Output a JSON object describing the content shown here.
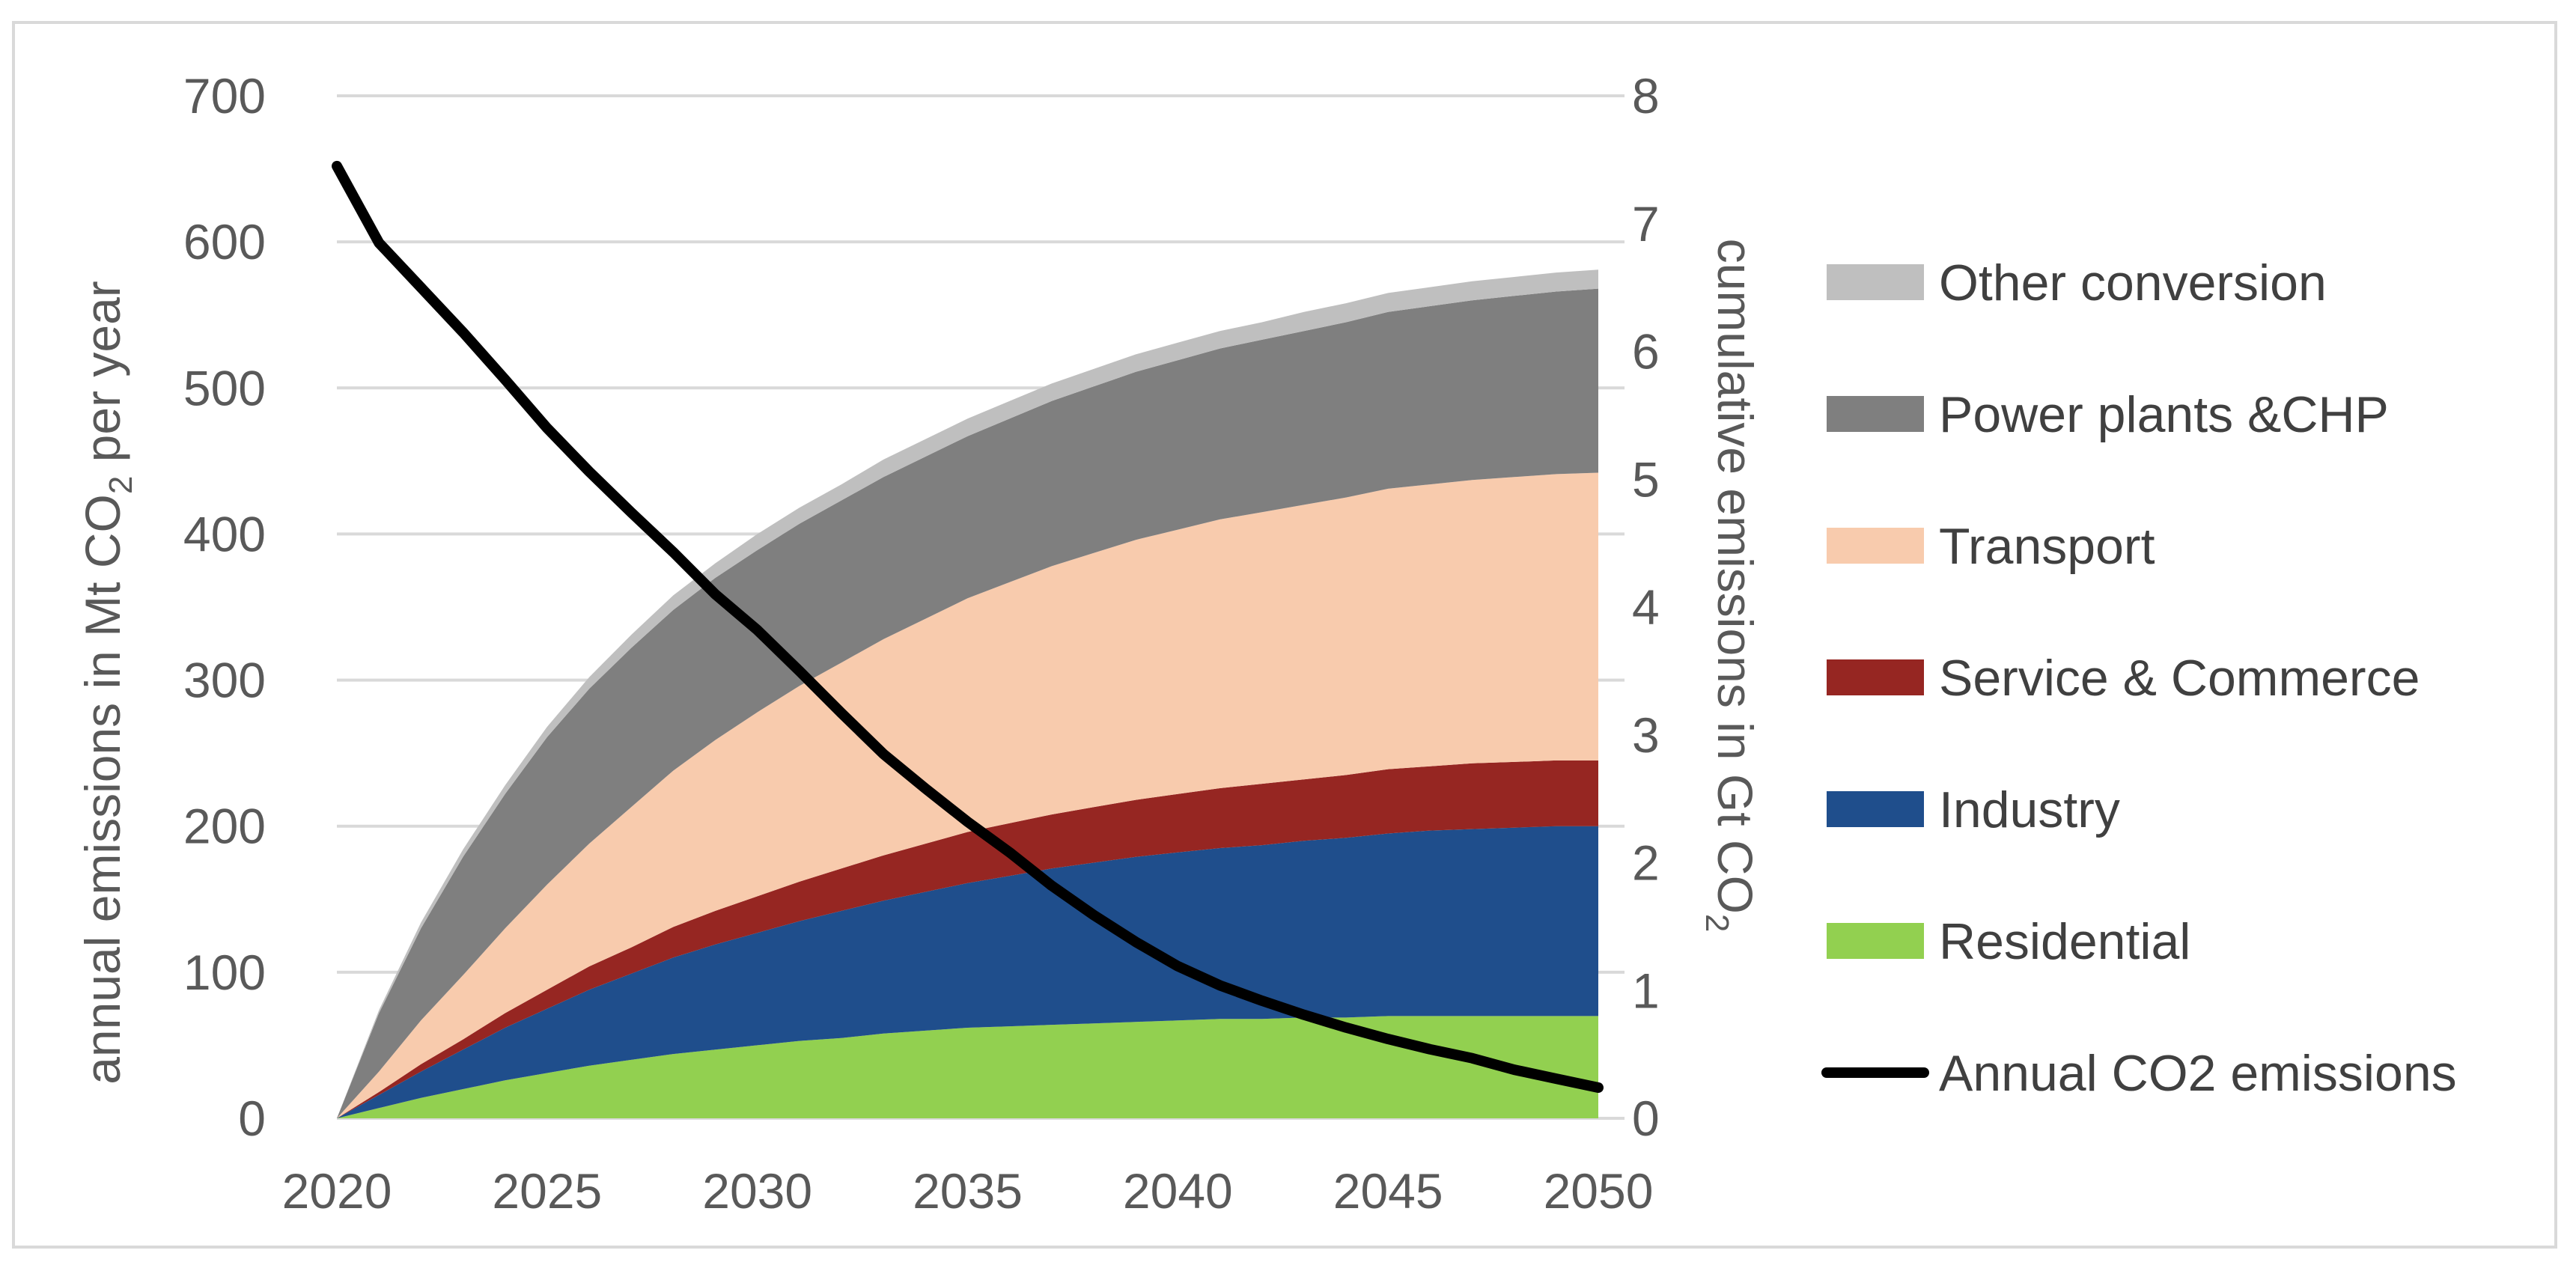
{
  "chart_data": {
    "type": "area",
    "stacked": true,
    "x": [
      2020,
      2021,
      2022,
      2023,
      2024,
      2025,
      2026,
      2027,
      2028,
      2029,
      2030,
      2031,
      2032,
      2033,
      2034,
      2035,
      2036,
      2037,
      2038,
      2039,
      2040,
      2041,
      2042,
      2043,
      2044,
      2045,
      2046,
      2047,
      2048,
      2049,
      2050
    ],
    "xticks": [
      "2020",
      "2025",
      "2030",
      "2035",
      "2040",
      "2045",
      "2050"
    ],
    "xlim": [
      2020,
      2050
    ],
    "y_left": {
      "label": "annual emissions in Mt CO",
      "subscript": "2",
      "suffix": " per year",
      "ylim": [
        0,
        700
      ],
      "ticks": [
        "0",
        "100",
        "200",
        "300",
        "400",
        "500",
        "600",
        "700"
      ]
    },
    "y_right": {
      "label": "cumulative emissions in Gt CO",
      "subscript": "2",
      "ylim": [
        0,
        8
      ],
      "ticks": [
        "0",
        "1",
        "2",
        "3",
        "4",
        "5",
        "6",
        "7",
        "8"
      ]
    },
    "grid": true,
    "legend_position": "right",
    "series": [
      {
        "name": "Residential",
        "axis": "left",
        "color": "#92d050",
        "values": [
          0,
          7,
          14,
          20,
          26,
          31,
          36,
          40,
          44,
          47,
          50,
          53,
          55,
          58,
          60,
          62,
          63,
          64,
          65,
          66,
          67,
          68,
          68,
          69,
          69,
          70,
          70,
          70,
          70,
          70,
          70
        ]
      },
      {
        "name": "Industry",
        "axis": "left",
        "color": "#1f4e8c",
        "values": [
          0,
          9,
          18,
          27,
          36,
          44,
          52,
          59,
          66,
          72,
          77,
          82,
          87,
          91,
          95,
          99,
          103,
          107,
          110,
          113,
          115,
          117,
          119,
          121,
          123,
          125,
          127,
          128,
          129,
          130,
          130
        ]
      },
      {
        "name": "Service & Commerce",
        "axis": "left",
        "color": "#962622",
        "values": [
          0,
          2,
          5,
          7,
          10,
          13,
          16,
          18,
          21,
          23,
          25,
          27,
          29,
          31,
          33,
          35,
          36,
          37,
          38,
          39,
          40,
          41,
          42,
          42,
          43,
          44,
          44,
          45,
          45,
          45,
          45
        ]
      },
      {
        "name": "Transport",
        "axis": "left",
        "color": "#f8cbad",
        "values": [
          0,
          14,
          30,
          44,
          58,
          72,
          84,
          96,
          107,
          117,
          126,
          134,
          141,
          148,
          154,
          160,
          165,
          170,
          174,
          178,
          181,
          184,
          186,
          188,
          190,
          192,
          193,
          194,
          195,
          196,
          197
        ]
      },
      {
        "name": "Power plants &CHP",
        "axis": "left",
        "color": "#7f7f7f",
        "values": [
          0,
          40,
          63,
          81,
          92,
          101,
          106,
          109,
          110,
          111,
          111,
          111,
          111,
          111,
          111,
          111,
          112,
          113,
          114,
          115,
          116,
          117,
          118,
          119,
          120,
          121,
          122,
          123,
          124,
          125,
          126
        ]
      },
      {
        "name": "Other conversion",
        "axis": "left",
        "color": "#bfbfbf",
        "values": [
          0,
          2,
          4,
          5,
          6,
          7,
          8,
          9,
          10,
          10,
          11,
          11,
          11,
          12,
          12,
          12,
          12,
          12,
          12,
          12,
          12,
          12,
          12,
          13,
          13,
          13,
          13,
          13,
          13,
          13,
          13
        ]
      },
      {
        "name": "Annual CO2 emissions",
        "axis": "right",
        "type": "line",
        "color": "#000000",
        "values": [
          7.45,
          6.85,
          6.5,
          6.15,
          5.78,
          5.4,
          5.06,
          4.74,
          4.43,
          4.1,
          3.82,
          3.5,
          3.17,
          2.85,
          2.58,
          2.32,
          2.08,
          1.82,
          1.59,
          1.38,
          1.19,
          1.04,
          0.92,
          0.81,
          0.71,
          0.62,
          0.54,
          0.47,
          0.38,
          0.31,
          0.24
        ]
      }
    ]
  }
}
